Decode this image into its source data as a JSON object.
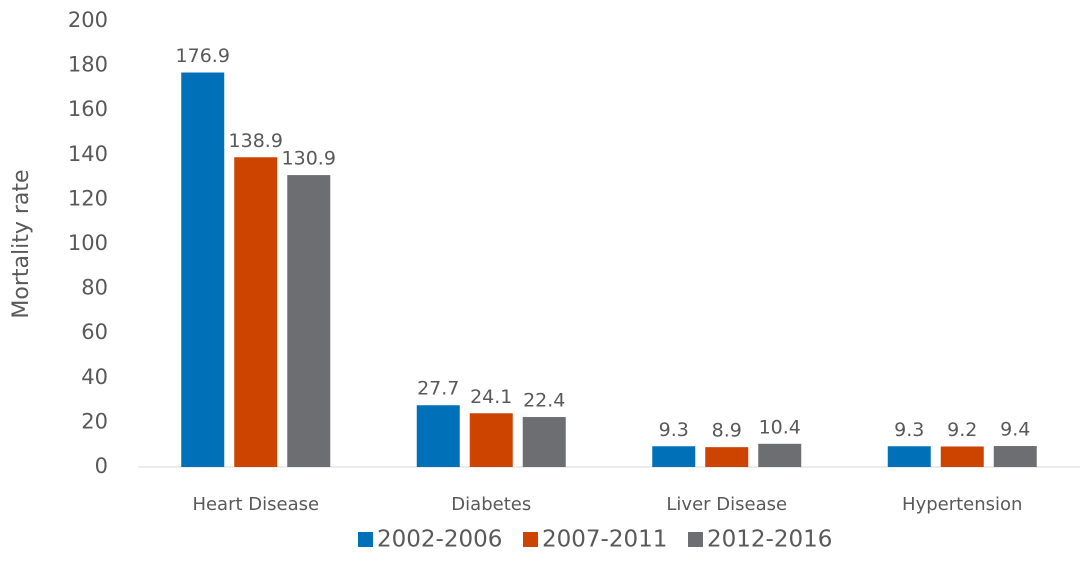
{
  "chart_data": {
    "type": "bar",
    "categories": [
      "Heart Disease",
      "Diabetes",
      "Liver Disease",
      "Hypertension"
    ],
    "series": [
      {
        "name": "2002-2006",
        "color": "#0070b8",
        "values": [
          176.9,
          27.7,
          9.3,
          9.3
        ]
      },
      {
        "name": "2007-2011",
        "color": "#cc4400",
        "values": [
          138.9,
          24.1,
          8.9,
          9.2
        ]
      },
      {
        "name": "2012-2016",
        "color": "#6d6e71",
        "values": [
          130.9,
          22.4,
          10.4,
          9.4
        ]
      }
    ],
    "y_label": "Mortality rate",
    "ylim": [
      0,
      200
    ],
    "yticks": [
      0,
      20,
      40,
      60,
      80,
      100,
      120,
      140,
      160,
      180,
      200
    ],
    "grid": false,
    "legend": "bottom"
  }
}
